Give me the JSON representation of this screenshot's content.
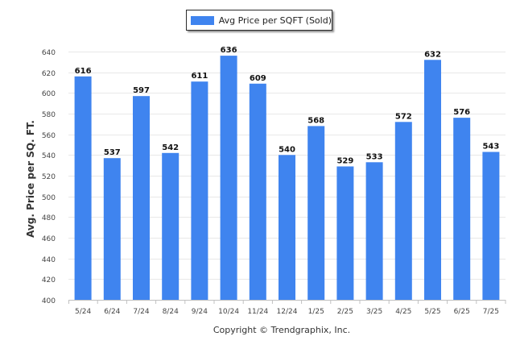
{
  "colors": {
    "bar": "#3f84ef",
    "grid": "#e8e8e8",
    "axis": "#c0c0c0",
    "text": "#333333"
  },
  "legend": {
    "label": "Avg Price per SQFT (Sold)",
    "placement": "top-center"
  },
  "footer": {
    "copyright": "Copyright © Trendgraphix, Inc."
  },
  "chart_data": {
    "type": "bar",
    "title": "",
    "xlabel": "",
    "ylabel": "Avg. Price per SQ. FT.",
    "ylim": [
      400,
      640
    ],
    "yticks": [
      400,
      420,
      440,
      460,
      480,
      500,
      520,
      540,
      560,
      580,
      600,
      620,
      640
    ],
    "grid": true,
    "categories": [
      "5/24",
      "6/24",
      "7/24",
      "8/24",
      "9/24",
      "10/24",
      "11/24",
      "12/24",
      "1/25",
      "2/25",
      "3/25",
      "4/25",
      "5/25",
      "6/25",
      "7/25"
    ],
    "series": [
      {
        "name": "Avg Price per SQFT (Sold)",
        "values": [
          616,
          537,
          597,
          542,
          611,
          636,
          609,
          540,
          568,
          529,
          533,
          572,
          632,
          576,
          543
        ]
      }
    ]
  }
}
